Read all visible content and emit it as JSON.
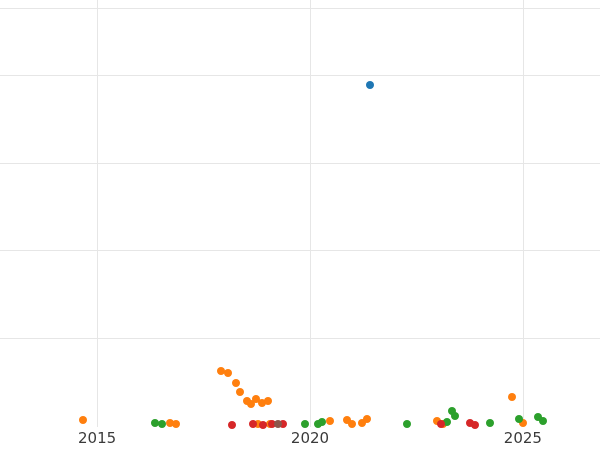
{
  "chart_data": {
    "type": "scatter",
    "title": "",
    "xlabel": "",
    "ylabel": "",
    "x_ticks": [
      2015,
      2020,
      2025
    ],
    "x_tick_labels": [
      "2015",
      "2020",
      "2025"
    ],
    "xlim": [
      2012.72,
      2026.81
    ],
    "ylim": [
      0,
      4.86
    ],
    "y_gridlines": [
      1,
      2,
      3,
      4,
      4.77
    ],
    "grid": true,
    "legend_position": "none",
    "background_color": "#ffffff",
    "gridline_color": "#e6e6e6",
    "tick_label_color": "#3a3a3a",
    "series": [
      {
        "name": "blue-series",
        "color": "#1f77b4",
        "points": [
          [
            2021.41,
            3.89
          ]
        ]
      },
      {
        "name": "orange-series",
        "color": "#ff7f0e",
        "points": [
          [
            2014.67,
            0.06
          ],
          [
            2016.71,
            0.02
          ],
          [
            2016.85,
            0.01
          ],
          [
            2017.91,
            0.62
          ],
          [
            2018.07,
            0.59
          ],
          [
            2018.26,
            0.48
          ],
          [
            2018.36,
            0.38
          ],
          [
            2018.52,
            0.27
          ],
          [
            2018.61,
            0.24
          ],
          [
            2018.73,
            0.3
          ],
          [
            2018.87,
            0.25
          ],
          [
            2019.01,
            0.27
          ],
          [
            2018.78,
            0.01
          ],
          [
            2019.06,
            0.01
          ],
          [
            2020.47,
            0.05
          ],
          [
            2020.87,
            0.06
          ],
          [
            2020.99,
            0.01
          ],
          [
            2021.22,
            0.02
          ],
          [
            2021.34,
            0.07
          ],
          [
            2022.98,
            0.05
          ],
          [
            2023.12,
            0.01
          ],
          [
            2024.74,
            0.32
          ],
          [
            2025.0,
            0.02
          ]
        ]
      },
      {
        "name": "green-series",
        "color": "#2ca02c",
        "points": [
          [
            2016.36,
            0.02
          ],
          [
            2016.53,
            0.01
          ],
          [
            2019.88,
            0.01
          ],
          [
            2020.19,
            0.01
          ],
          [
            2020.28,
            0.03
          ],
          [
            2022.28,
            0.01
          ],
          [
            2023.22,
            0.03
          ],
          [
            2023.33,
            0.16
          ],
          [
            2023.4,
            0.1
          ],
          [
            2024.22,
            0.02
          ],
          [
            2024.9,
            0.07
          ],
          [
            2025.35,
            0.09
          ],
          [
            2025.47,
            0.05
          ]
        ]
      },
      {
        "name": "red-series",
        "color": "#d62728",
        "points": [
          [
            2018.17,
            0.0
          ],
          [
            2018.66,
            0.01
          ],
          [
            2018.89,
            0.0
          ],
          [
            2019.11,
            0.01
          ],
          [
            2019.37,
            0.01
          ],
          [
            2023.08,
            0.01
          ],
          [
            2023.76,
            0.02
          ],
          [
            2023.87,
            0.0
          ]
        ]
      },
      {
        "name": "brown-series",
        "color": "#8c564b",
        "points": [
          [
            2019.25,
            0.01
          ]
        ]
      }
    ]
  }
}
